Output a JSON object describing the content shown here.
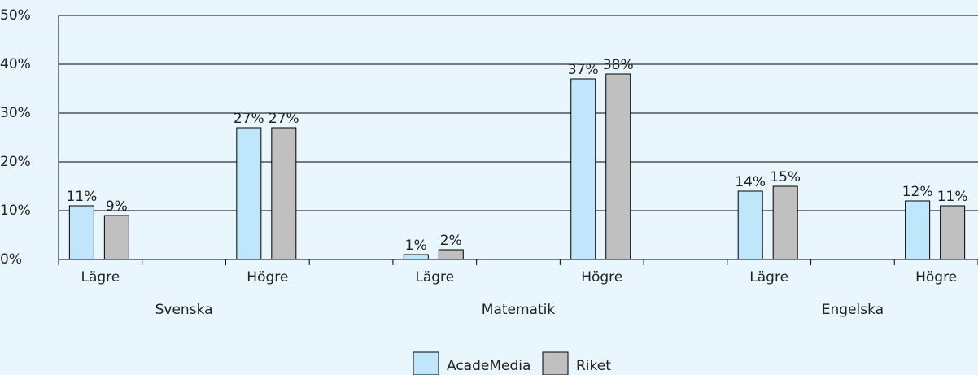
{
  "chart_data": {
    "type": "bar",
    "categories": [
      "Lägre",
      null,
      "Högre",
      null,
      "Lägre",
      null,
      "Högre",
      null,
      "Lägre",
      null,
      "Högre"
    ],
    "groups": [
      "Svenska",
      "Matematik",
      "Engelska"
    ],
    "series": [
      {
        "name": "AcadeMedia",
        "color": "#bfe6fb",
        "values": [
          11,
          null,
          27,
          null,
          1,
          null,
          37,
          null,
          14,
          null,
          12
        ],
        "value_labels": [
          "11%",
          null,
          "27%",
          null,
          "1%",
          null,
          "37%",
          null,
          "14%",
          null,
          "12%"
        ]
      },
      {
        "name": "Riket",
        "color": "#c0c0c0",
        "values": [
          9,
          null,
          27,
          null,
          2,
          null,
          38,
          null,
          15,
          null,
          11
        ],
        "value_labels": [
          "9%",
          null,
          "27%",
          null,
          "2%",
          null,
          "38%",
          null,
          "15%",
          null,
          "11%"
        ]
      }
    ],
    "ylim": [
      0,
      50
    ],
    "yticks": [
      {
        "value": 0,
        "label": "0%"
      },
      {
        "value": 10,
        "label": "10%"
      },
      {
        "value": 20,
        "label": "20%"
      },
      {
        "value": 30,
        "label": "30%"
      },
      {
        "value": 40,
        "label": "40%"
      },
      {
        "value": 50,
        "label": "50%"
      }
    ],
    "grid": true,
    "legend": "bottom"
  }
}
